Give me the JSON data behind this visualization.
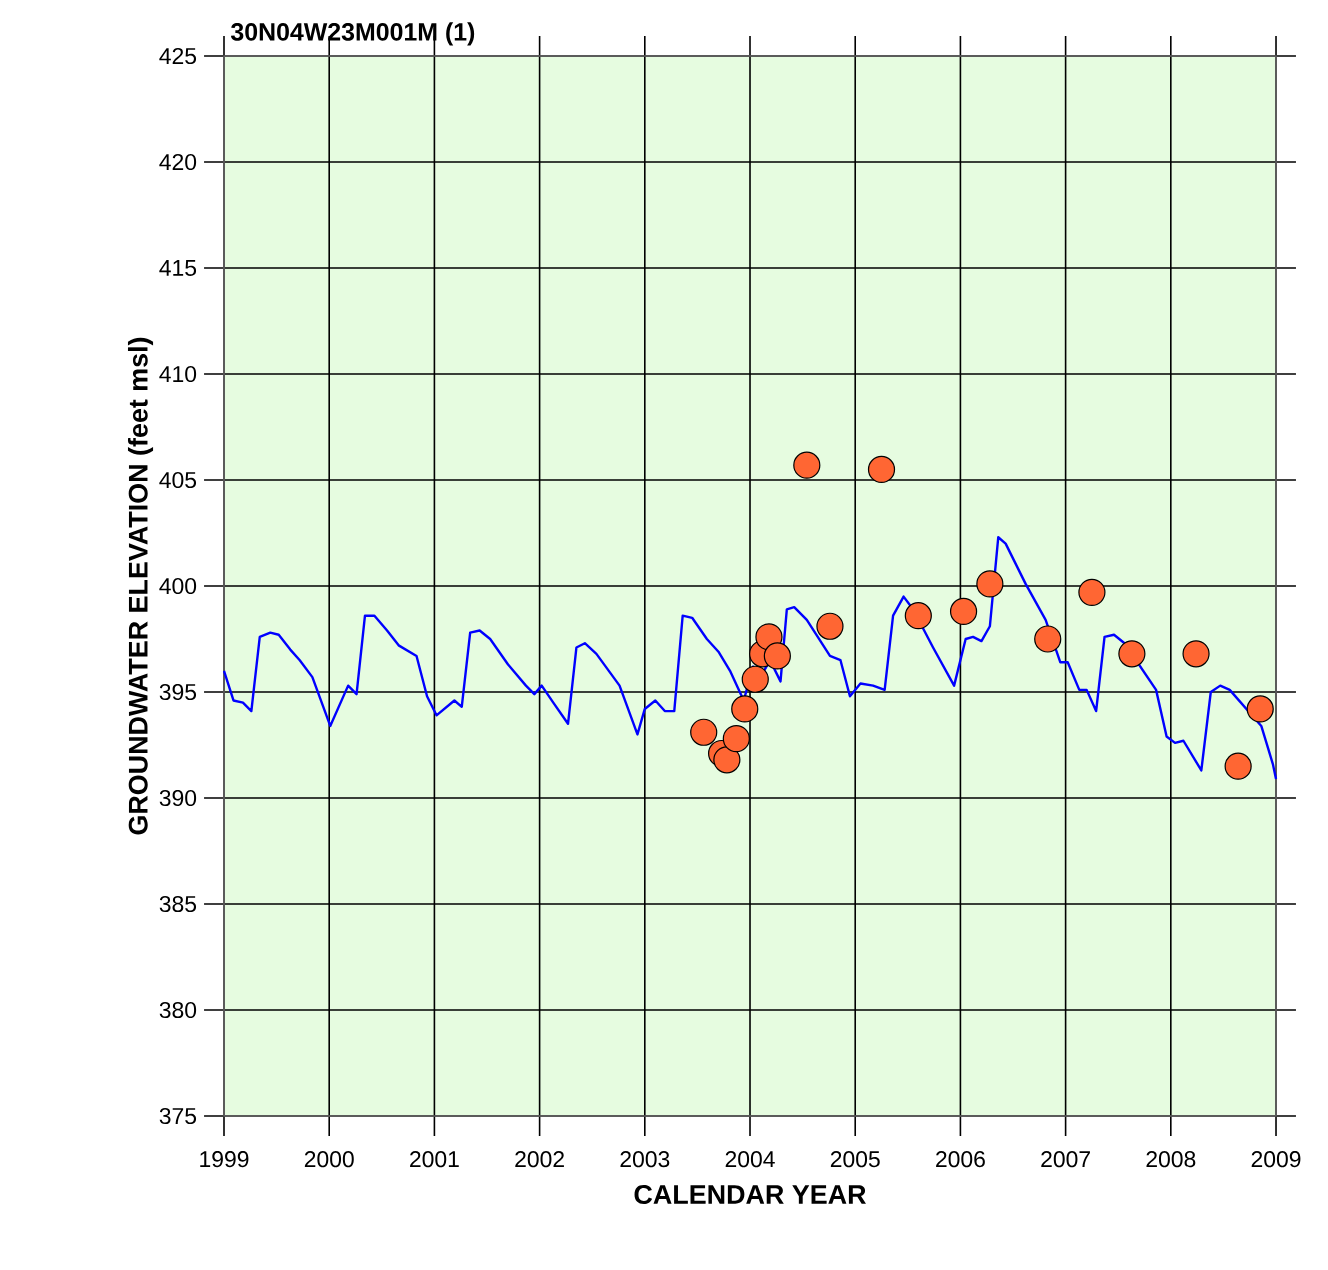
{
  "chart_data": {
    "type": "line",
    "title": "30N04W23M001M (1)",
    "xlabel": "CALENDAR YEAR",
    "ylabel": "GROUNDWATER ELEVATION (feet msl)",
    "xlim": [
      1999,
      2009
    ],
    "xticks": [
      1999,
      2000,
      2001,
      2002,
      2003,
      2004,
      2005,
      2006,
      2007,
      2008,
      2009
    ],
    "ylim": [
      375,
      425
    ],
    "yticks": [
      375,
      380,
      385,
      390,
      395,
      400,
      405,
      410,
      415,
      420,
      425
    ],
    "grid": true,
    "series": [
      {
        "color": "#0000ff",
        "line_style": "solid",
        "marker": "none",
        "x": [
          1999.0,
          1999.09,
          1999.18,
          1999.26,
          1999.34,
          1999.44,
          1999.52,
          1999.63,
          1999.72,
          1999.84,
          2000.01,
          2000.18,
          2000.26,
          2000.34,
          2000.43,
          2000.55,
          2000.66,
          2000.83,
          2000.93,
          2001.02,
          2001.19,
          2001.26,
          2001.34,
          2001.43,
          2001.53,
          2001.7,
          2001.87,
          2001.95,
          2002.02,
          2002.13,
          2002.27,
          2002.35,
          2002.43,
          2002.54,
          2002.76,
          2002.93,
          2003.0,
          2003.1,
          2003.19,
          2003.28,
          2003.36,
          2003.45,
          2003.59,
          2003.7,
          2003.81,
          2003.94,
          2004.03,
          2004.1,
          2004.19,
          2004.29,
          2004.35,
          2004.42,
          2004.54,
          2004.76,
          2004.86,
          2004.95,
          2005.05,
          2005.17,
          2005.28,
          2005.36,
          2005.46,
          2005.55,
          2005.74,
          2005.94,
          2006.05,
          2006.12,
          2006.2,
          2006.28,
          2006.36,
          2006.43,
          2006.62,
          2006.81,
          2006.95,
          2007.02,
          2007.13,
          2007.2,
          2007.29,
          2007.37,
          2007.46,
          2007.56,
          2007.86,
          2007.96,
          2008.04,
          2008.12,
          2008.29,
          2008.38,
          2008.47,
          2008.56,
          2008.86,
          2008.97,
          2009.0
        ],
        "values": [
          396.0,
          394.6,
          394.5,
          394.1,
          397.6,
          397.8,
          397.7,
          397.0,
          396.5,
          395.7,
          393.4,
          395.3,
          394.9,
          398.6,
          398.6,
          397.9,
          397.2,
          396.7,
          394.8,
          393.9,
          394.6,
          394.3,
          397.8,
          397.9,
          397.5,
          396.3,
          395.3,
          394.9,
          395.3,
          394.5,
          393.5,
          397.1,
          397.3,
          396.8,
          395.3,
          393.0,
          394.2,
          394.6,
          394.1,
          394.1,
          398.6,
          398.5,
          397.5,
          396.9,
          396.0,
          394.6,
          396.2,
          395.7,
          396.5,
          395.5,
          398.9,
          399.0,
          398.4,
          396.7,
          396.5,
          394.8,
          395.4,
          395.3,
          395.1,
          398.6,
          399.5,
          398.9,
          397.1,
          395.3,
          397.5,
          397.6,
          397.4,
          398.1,
          402.3,
          402.0,
          400.1,
          398.4,
          396.4,
          396.4,
          395.1,
          395.1,
          394.1,
          397.6,
          397.7,
          397.3,
          395.1,
          392.9,
          392.6,
          392.7,
          391.3,
          395.0,
          395.3,
          395.1,
          393.4,
          391.6,
          390.9
        ]
      },
      {
        "type": "scatter",
        "color": "#ff6633",
        "marker": "circle",
        "x": [
          2003.56,
          2003.73,
          2003.78,
          2003.87,
          2003.95,
          2004.05,
          2004.12,
          2004.18,
          2004.26,
          2004.54,
          2004.76,
          2005.25,
          2005.6,
          2006.03,
          2006.28,
          2006.83,
          2007.25,
          2007.63,
          2008.24,
          2008.64,
          2008.85
        ],
        "values": [
          393.1,
          392.1,
          391.8,
          392.8,
          394.2,
          395.6,
          396.8,
          397.6,
          396.7,
          405.7,
          398.1,
          405.5,
          398.6,
          398.8,
          400.1,
          397.5,
          399.7,
          396.8,
          396.8,
          391.5,
          394.2
        ]
      }
    ]
  }
}
